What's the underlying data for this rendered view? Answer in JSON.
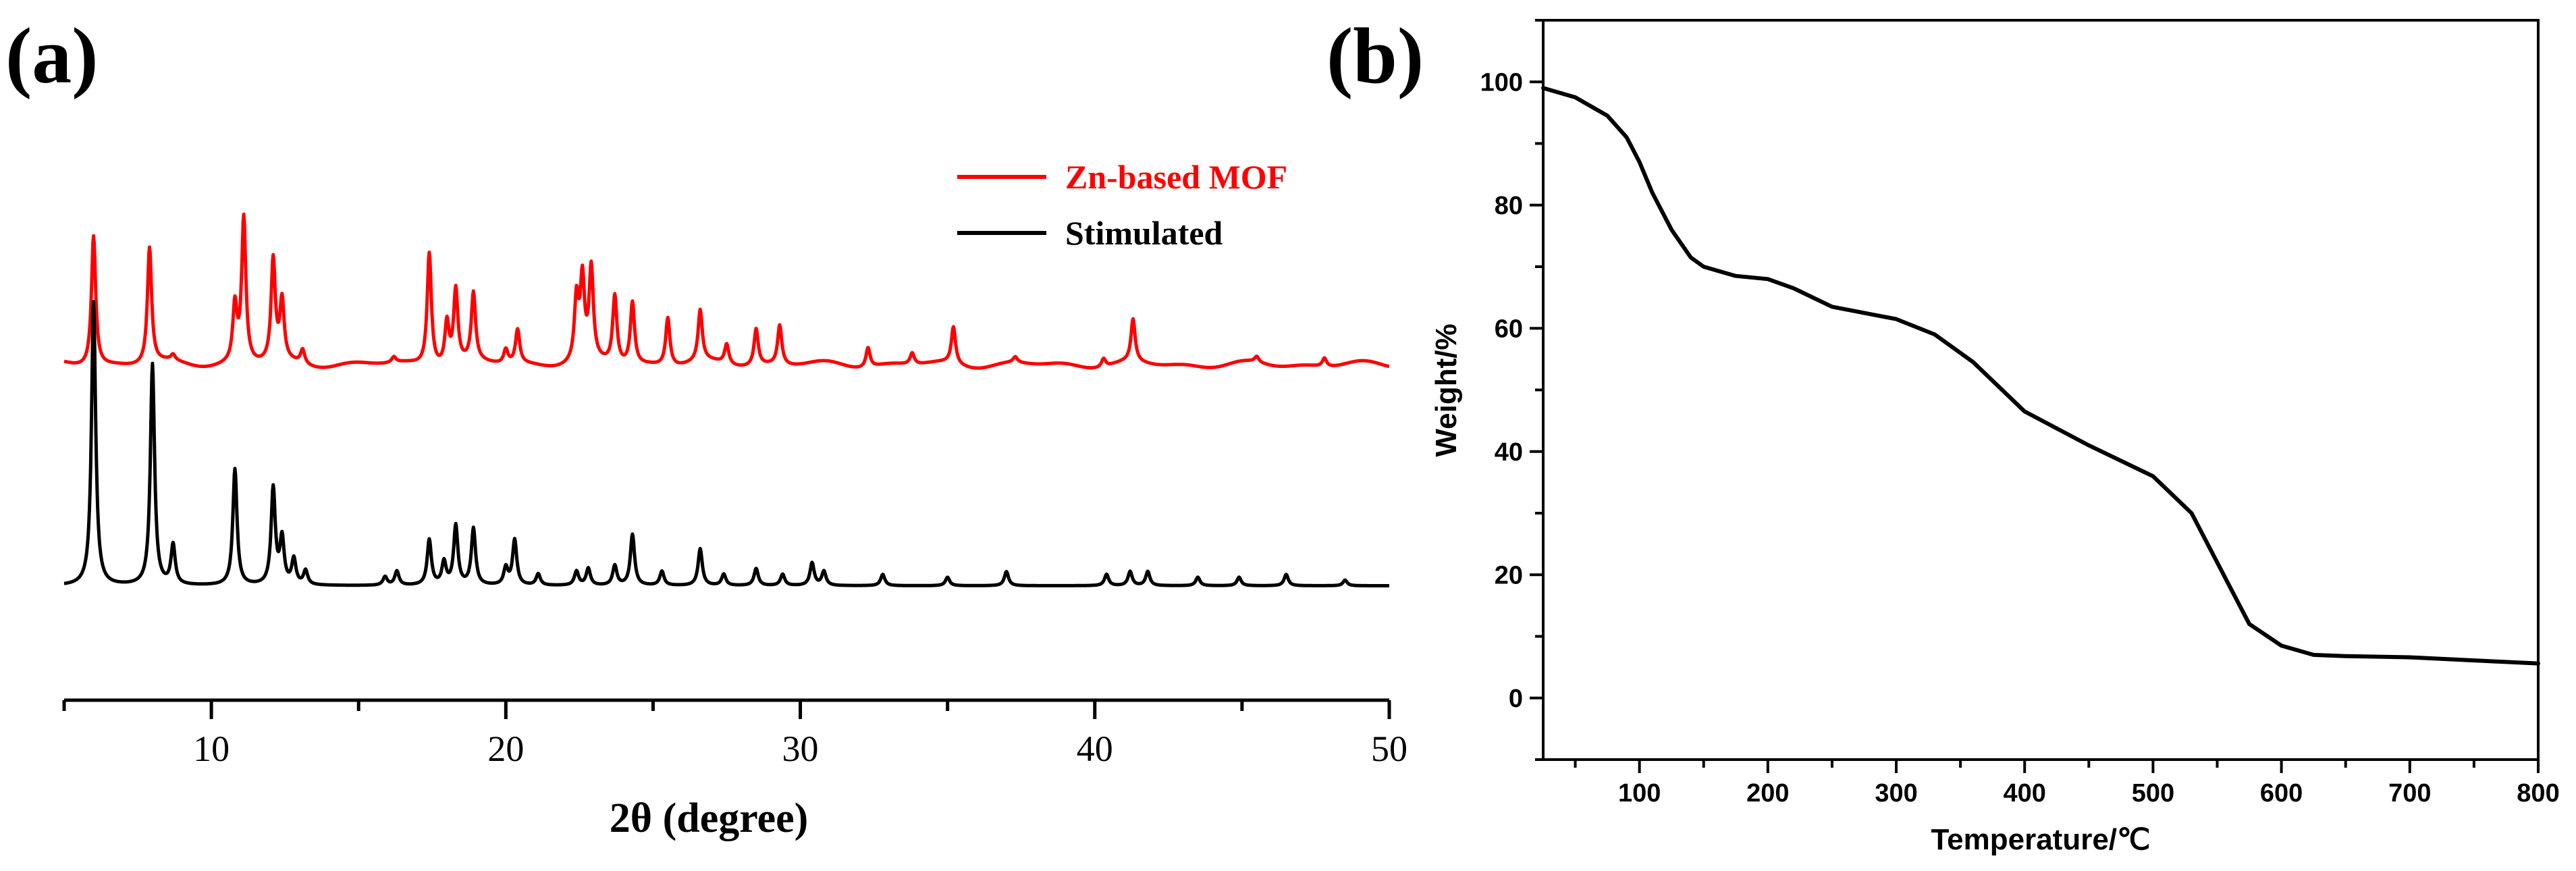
{
  "panels": {
    "a": "(a)",
    "b": "(b)"
  },
  "chart_data": [
    {
      "type": "line",
      "panel": "(a)",
      "title": "",
      "xlabel": "2θ (degree)",
      "ylabel": "",
      "xlim": [
        5,
        50
      ],
      "xticks": [
        "10",
        "20",
        "30",
        "40",
        "50"
      ],
      "xtick_values": [
        10,
        20,
        30,
        40,
        50
      ],
      "y_axis_shown": false,
      "legend_position": "top-right",
      "series": [
        {
          "name": "Zn-based MOF",
          "color": "#ff0000",
          "baseline": 0.0,
          "peaks": [
            [
              6.0,
              0.46
            ],
            [
              7.9,
              0.41
            ],
            [
              8.7,
              0.02
            ],
            [
              10.8,
              0.2
            ],
            [
              11.1,
              0.51
            ],
            [
              12.1,
              0.36
            ],
            [
              12.4,
              0.21
            ],
            [
              13.1,
              0.05
            ],
            [
              16.2,
              0.02
            ],
            [
              17.4,
              0.4
            ],
            [
              18.0,
              0.15
            ],
            [
              18.3,
              0.26
            ],
            [
              18.9,
              0.24
            ],
            [
              20.0,
              0.05
            ],
            [
              20.4,
              0.12
            ],
            [
              22.4,
              0.22
            ],
            [
              22.6,
              0.28
            ],
            [
              22.9,
              0.32
            ],
            [
              23.7,
              0.24
            ],
            [
              24.3,
              0.22
            ],
            [
              25.5,
              0.17
            ],
            [
              26.6,
              0.18
            ],
            [
              27.5,
              0.07
            ],
            [
              28.5,
              0.13
            ],
            [
              29.3,
              0.14
            ],
            [
              32.3,
              0.07
            ],
            [
              33.8,
              0.04
            ],
            [
              35.2,
              0.13
            ],
            [
              37.3,
              0.02
            ],
            [
              40.3,
              0.03
            ],
            [
              41.3,
              0.15
            ],
            [
              45.5,
              0.02
            ],
            [
              47.8,
              0.03
            ]
          ]
        },
        {
          "name": "Stimulated",
          "color": "#000000",
          "baseline": -0.78,
          "peaks": [
            [
              6.0,
              1.0
            ],
            [
              8.0,
              0.78
            ],
            [
              8.7,
              0.14
            ],
            [
              10.8,
              0.41
            ],
            [
              12.1,
              0.34
            ],
            [
              12.4,
              0.16
            ],
            [
              12.8,
              0.09
            ],
            [
              13.2,
              0.05
            ],
            [
              15.9,
              0.03
            ],
            [
              16.3,
              0.05
            ],
            [
              17.4,
              0.16
            ],
            [
              17.9,
              0.08
            ],
            [
              18.3,
              0.21
            ],
            [
              18.9,
              0.2
            ],
            [
              20.0,
              0.06
            ],
            [
              20.3,
              0.16
            ],
            [
              21.1,
              0.04
            ],
            [
              22.4,
              0.05
            ],
            [
              22.8,
              0.06
            ],
            [
              23.7,
              0.07
            ],
            [
              24.3,
              0.18
            ],
            [
              25.3,
              0.05
            ],
            [
              26.6,
              0.13
            ],
            [
              27.4,
              0.04
            ],
            [
              28.5,
              0.06
            ],
            [
              29.4,
              0.04
            ],
            [
              30.4,
              0.08
            ],
            [
              30.8,
              0.05
            ],
            [
              32.8,
              0.04
            ],
            [
              35.0,
              0.03
            ],
            [
              37.0,
              0.05
            ],
            [
              40.4,
              0.04
            ],
            [
              41.2,
              0.05
            ],
            [
              41.8,
              0.05
            ],
            [
              43.5,
              0.03
            ],
            [
              44.9,
              0.03
            ],
            [
              46.5,
              0.04
            ],
            [
              48.5,
              0.02
            ]
          ]
        }
      ]
    },
    {
      "type": "line",
      "panel": "(b)",
      "title": "",
      "xlabel": "Temperature/℃",
      "ylabel": "Weight/%",
      "xlim": [
        25,
        800
      ],
      "ylim": [
        -10,
        110
      ],
      "xticks": [
        "100",
        "200",
        "300",
        "400",
        "500",
        "600",
        "700",
        "800"
      ],
      "xtick_values": [
        100,
        200,
        300,
        400,
        500,
        600,
        700,
        800
      ],
      "yticks": [
        "0",
        "20",
        "40",
        "60",
        "80",
        "100"
      ],
      "ytick_values": [
        0,
        20,
        40,
        60,
        80,
        100
      ],
      "grid": false,
      "series": [
        {
          "name": "",
          "color": "#000000",
          "x": [
            25,
            50,
            75,
            90,
            100,
            110,
            125,
            140,
            150,
            175,
            200,
            220,
            250,
            300,
            330,
            360,
            400,
            450,
            500,
            530,
            550,
            560,
            575,
            600,
            625,
            650,
            700,
            750,
            800
          ],
          "y": [
            99,
            97.5,
            94.5,
            91,
            87,
            82,
            76,
            71.5,
            70,
            68.5,
            68,
            66.5,
            63.5,
            61.5,
            59,
            54.5,
            46.5,
            41,
            36,
            30,
            22,
            18,
            12,
            8.5,
            7,
            6.8,
            6.6,
            6.1,
            5.6
          ]
        }
      ]
    }
  ]
}
